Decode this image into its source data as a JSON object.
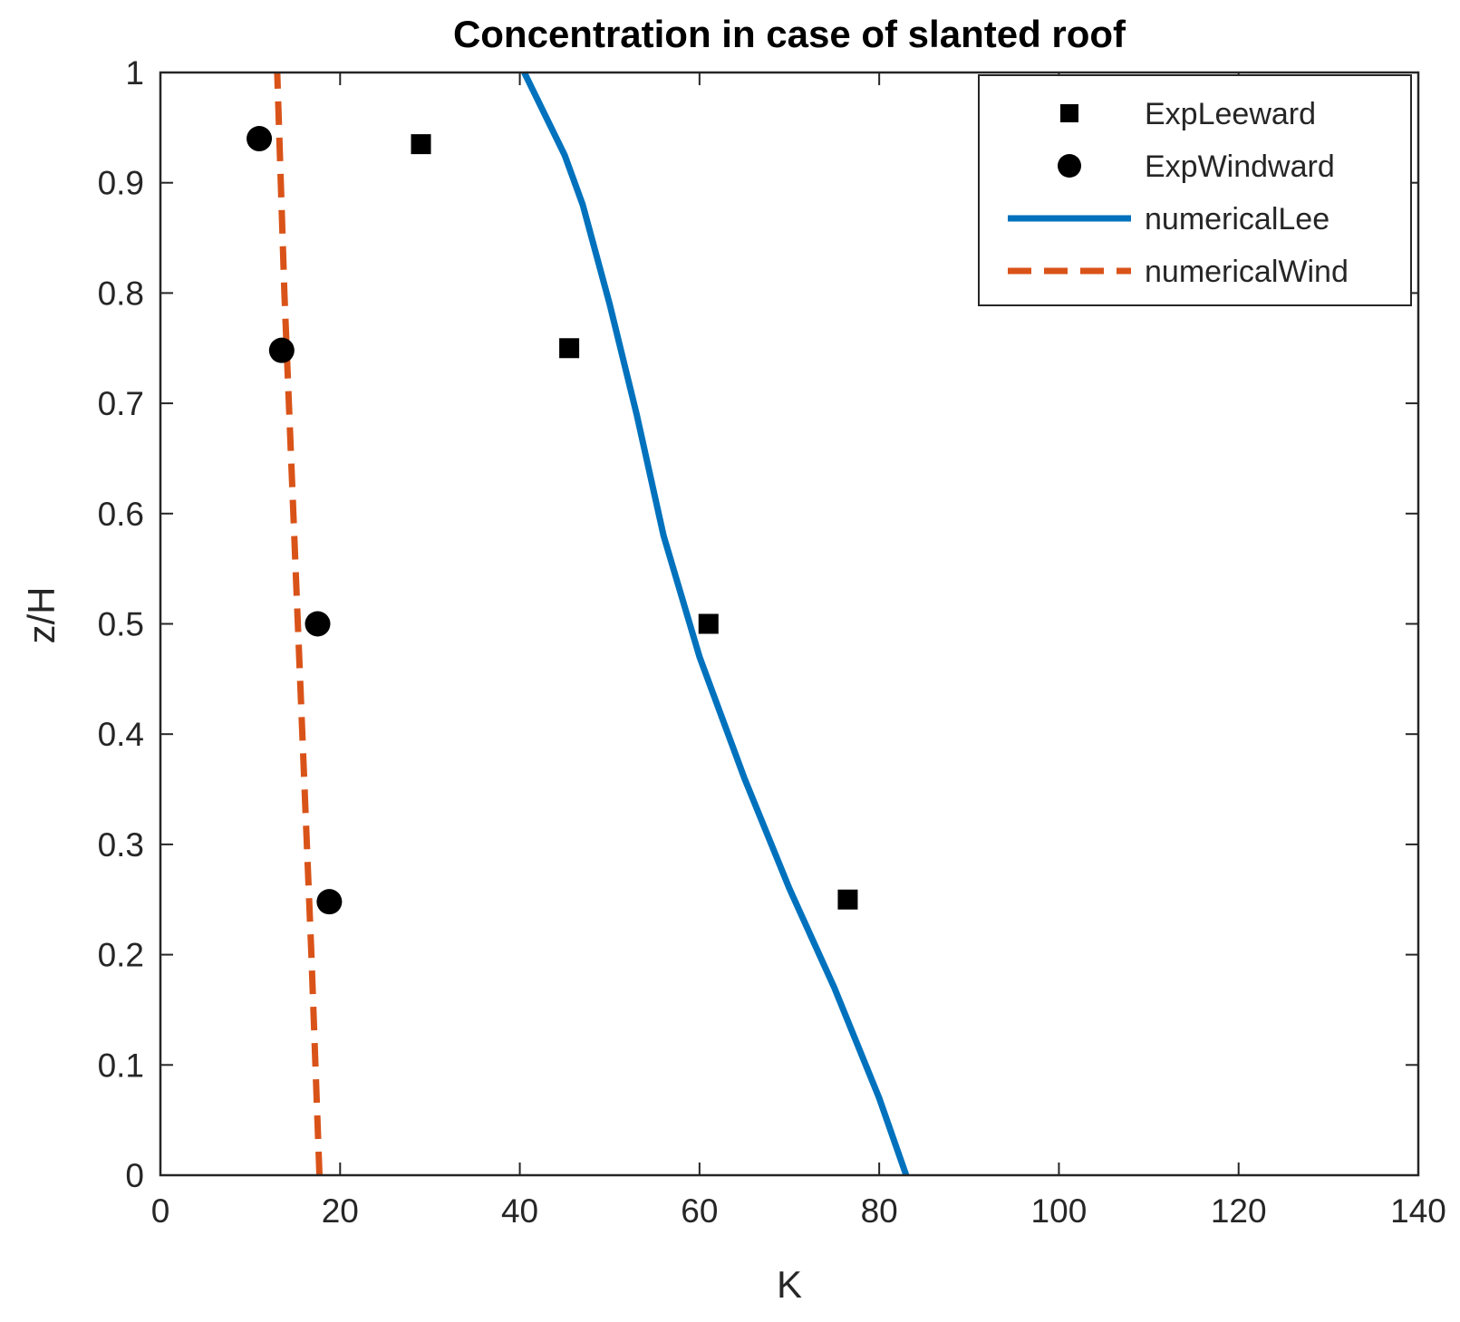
{
  "chart_data": {
    "type": "scatter",
    "title": "Concentration in case of slanted roof",
    "xlabel": "K",
    "ylabel": "z/H",
    "xlim": [
      0,
      140
    ],
    "ylim": [
      0,
      1
    ],
    "xticks": [
      0,
      20,
      40,
      60,
      80,
      100,
      120,
      140
    ],
    "yticks": [
      0,
      0.1,
      0.2,
      0.3,
      0.4,
      0.5,
      0.6,
      0.7,
      0.8,
      0.9,
      1
    ],
    "grid": false,
    "legend_position": "top-right",
    "series": [
      {
        "name": "ExpLeeward",
        "type": "scatter",
        "marker": "square",
        "color": "#000000",
        "points": [
          [
            29,
            0.935
          ],
          [
            45.5,
            0.75
          ],
          [
            61,
            0.5
          ],
          [
            76.5,
            0.25
          ]
        ]
      },
      {
        "name": "ExpWindward",
        "type": "scatter",
        "marker": "circle",
        "color": "#000000",
        "points": [
          [
            11,
            0.94
          ],
          [
            13.5,
            0.748
          ],
          [
            17.5,
            0.5
          ],
          [
            18.8,
            0.248
          ]
        ]
      },
      {
        "name": "numericalLee",
        "type": "line",
        "style": "solid",
        "color": "#0072BD",
        "points": [
          [
            83,
            0
          ],
          [
            80,
            0.07
          ],
          [
            75,
            0.17
          ],
          [
            70,
            0.26
          ],
          [
            65,
            0.36
          ],
          [
            60,
            0.47
          ],
          [
            56,
            0.58
          ],
          [
            53,
            0.69
          ],
          [
            50,
            0.79
          ],
          [
            47,
            0.88
          ],
          [
            45,
            0.925
          ],
          [
            40.5,
            1.0
          ]
        ]
      },
      {
        "name": "numericalWind",
        "type": "line",
        "style": "dashed",
        "color": "#D95319",
        "points": [
          [
            17.7,
            0
          ],
          [
            16.8,
            0.2
          ],
          [
            15.8,
            0.4
          ],
          [
            14.8,
            0.6
          ],
          [
            13.8,
            0.8
          ],
          [
            13.0,
            1.0
          ]
        ]
      }
    ]
  }
}
